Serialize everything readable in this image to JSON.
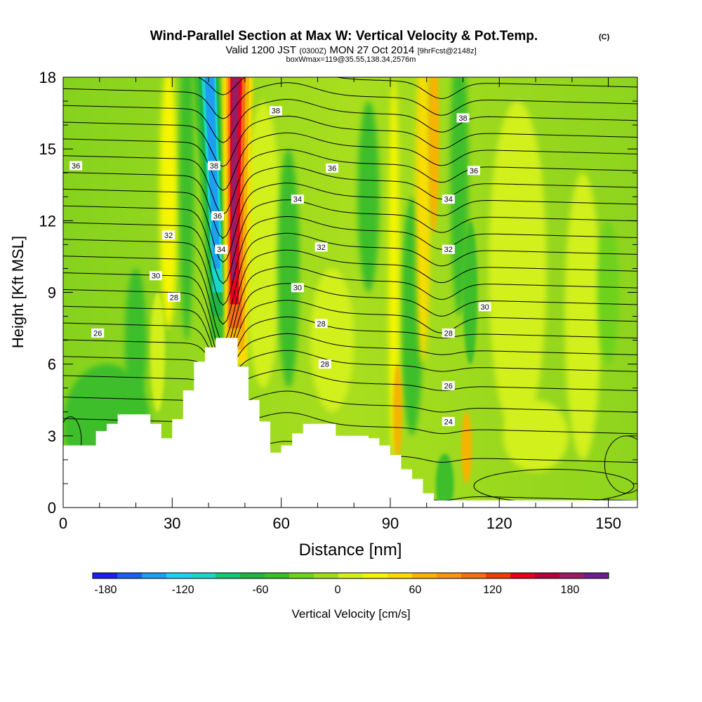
{
  "chart_data": {
    "type": "contour",
    "title": "Wind-Parallel Section at Max W: Vertical Velocity & Pot.Temp.",
    "title_mark": "(C)",
    "subtitle_main": "Valid 1200 JST",
    "subtitle_utc": "(0300Z)",
    "subtitle_date": "MON 27 Oct 2014",
    "subtitle_fcst": "[9hrFcst@2148z]",
    "subtitle_box": "boxWmax=119@35.55,138.34,2576m",
    "xlabel": "Distance [nm]",
    "ylabel": "Height [Kft MSL]",
    "xlim": [
      0,
      158
    ],
    "ylim": [
      0,
      18
    ],
    "x_ticks": [
      "0",
      "30",
      "60",
      "90",
      "120",
      "150"
    ],
    "y_ticks": [
      "0",
      "3",
      "6",
      "9",
      "12",
      "15",
      "18"
    ],
    "colorbar": {
      "label": "Vertical Velocity [cm/s]",
      "range": [
        -190,
        210
      ],
      "tick_labels": [
        "-180",
        "-120",
        "-60",
        "0",
        "60",
        "120",
        "180"
      ],
      "colors": [
        "#1e1ef0",
        "#1e5ef0",
        "#1e9ef0",
        "#1ed2f0",
        "#19d7c8",
        "#14c878",
        "#1eb446",
        "#3cbe2a",
        "#6ed21e",
        "#a0dc1e",
        "#d2f01e",
        "#f5f500",
        "#fadc00",
        "#f5b400",
        "#f59614",
        "#f56e14",
        "#f03c0a",
        "#e6001e",
        "#b4003c",
        "#961e64",
        "#6e1e8c"
      ]
    },
    "terrain_profile": {
      "x": [
        0,
        3,
        9,
        12,
        15,
        18,
        24,
        27,
        30,
        33,
        36,
        39,
        42,
        45,
        48,
        51,
        54,
        57,
        60,
        63,
        66,
        69,
        72,
        75,
        78,
        81,
        84,
        87,
        90,
        93,
        96,
        99,
        102,
        105,
        108,
        111,
        114,
        117,
        120,
        123,
        126,
        129,
        132,
        135,
        138,
        141,
        144,
        147,
        150,
        153,
        156,
        158
      ],
      "height_kft": [
        2.6,
        2.6,
        3.2,
        3.5,
        3.9,
        3.9,
        3.5,
        2.9,
        3.7,
        4.9,
        6.1,
        6.7,
        7.1,
        7.1,
        5.9,
        4.5,
        3.6,
        2.3,
        2.6,
        3.1,
        3.5,
        3.5,
        3.5,
        3.0,
        3.0,
        3.0,
        2.9,
        2.6,
        2.2,
        1.6,
        1.2,
        0.6,
        0.3,
        0.3,
        0.3,
        0.3,
        0.3,
        0.3,
        0.3,
        0.3,
        0.3,
        0.3,
        0.3,
        0.3,
        0.3,
        0.3,
        0.3,
        0.3,
        0.3,
        0.3,
        0.3,
        0.3
      ]
    },
    "isentropes": {
      "variable": "potential temperature",
      "levels": [
        24,
        26,
        28,
        30,
        32,
        34,
        36,
        38
      ],
      "labels": [
        {
          "text": "24",
          "x": 106.0,
          "y": 3.6
        },
        {
          "text": "26",
          "x": 106.0,
          "y": 5.1
        },
        {
          "text": "26",
          "x": 9.5,
          "y": 7.3
        },
        {
          "text": "28",
          "x": 72.0,
          "y": 6.0
        },
        {
          "text": "28",
          "x": 71.0,
          "y": 7.7
        },
        {
          "text": "28",
          "x": 106.0,
          "y": 7.3
        },
        {
          "text": "28",
          "x": 30.5,
          "y": 8.8
        },
        {
          "text": "30",
          "x": 25.5,
          "y": 9.7
        },
        {
          "text": "30",
          "x": 64.5,
          "y": 9.2
        },
        {
          "text": "30",
          "x": 116.0,
          "y": 8.4
        },
        {
          "text": "32",
          "x": 29.0,
          "y": 11.4
        },
        {
          "text": "32",
          "x": 71.0,
          "y": 10.9
        },
        {
          "text": "32",
          "x": 106.0,
          "y": 10.8
        },
        {
          "text": "34",
          "x": 43.5,
          "y": 10.8
        },
        {
          "text": "34",
          "x": 64.5,
          "y": 12.9
        },
        {
          "text": "34",
          "x": 106.0,
          "y": 12.9
        },
        {
          "text": "36",
          "x": 42.5,
          "y": 12.2
        },
        {
          "text": "36",
          "x": 3.5,
          "y": 14.3
        },
        {
          "text": "36",
          "x": 74.0,
          "y": 14.2
        },
        {
          "text": "36",
          "x": 113.0,
          "y": 14.1
        },
        {
          "text": "38",
          "x": 41.5,
          "y": 14.3
        },
        {
          "text": "38",
          "x": 58.5,
          "y": 16.6
        },
        {
          "text": "38",
          "x": 110.0,
          "y": 16.3
        }
      ]
    },
    "vertical_velocity_features": [
      {
        "type": "downdraft",
        "x_range": [
          37,
          47
        ],
        "y_range": [
          7,
          18
        ],
        "min_cm_s": -150
      },
      {
        "type": "updraft",
        "x_range": [
          43,
          52
        ],
        "y_range": [
          6,
          18
        ],
        "max_cm_s": 190
      },
      {
        "type": "weak updraft",
        "x_range": [
          89,
          94
        ],
        "y_range": [
          3,
          18
        ],
        "max_cm_s": 60
      },
      {
        "type": "weak updraft",
        "x_range": [
          97,
          104
        ],
        "y_range": [
          9,
          18
        ],
        "max_cm_s": 70
      },
      {
        "type": "weak downdraft",
        "x_range": [
          106,
          114
        ],
        "y_range": [
          8,
          18
        ],
        "min_cm_s": -50
      }
    ]
  }
}
